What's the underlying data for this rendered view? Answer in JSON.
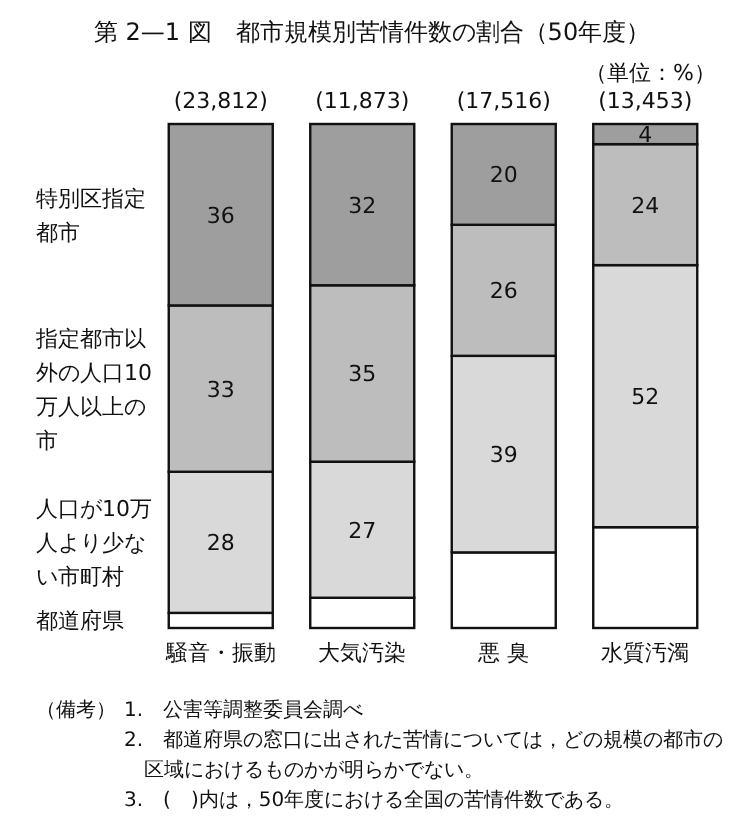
{
  "chart_data": {
    "type": "bar",
    "stacked": true,
    "title": "第 2—1 図　都市規模別苦情件数の割合（50年度）",
    "categories": [
      "騒音・振動",
      "大気汚染",
      "悪 臭",
      "水質汚濁"
    ],
    "series": [
      {
        "name": "都道府県",
        "color": "#ffffff",
        "values": [
          3,
          6,
          15,
          20
        ],
        "value_labels": [
          null,
          null,
          null,
          null
        ]
      },
      {
        "name": "人口が10万人より少ない市町村",
        "color": "#d9d9d9",
        "values": [
          28,
          27,
          39,
          52
        ],
        "value_labels": [
          "28",
          "27",
          "39",
          "52"
        ]
      },
      {
        "name": "指定都市以外の人口10万人以上の市",
        "color": "#bdbdbd",
        "values": [
          33,
          35,
          26,
          24
        ],
        "value_labels": [
          "33",
          "35",
          "26",
          "24"
        ]
      },
      {
        "name": "特別区指定都市",
        "color": "#9e9e9e",
        "values": [
          36,
          32,
          20,
          4
        ],
        "value_labels": [
          "36",
          "32",
          "20",
          "4"
        ]
      }
    ],
    "annotations": [
      "（単位：%）",
      "(23,812)",
      "(11,873)",
      "(17,516)",
      "(13,453)",
      "（備考）",
      "1.　公害等調整委員会調べ",
      "2.　都道府県の窓口に出された苦情については，どの規模の都市の区域におけるものかが明らかでない。",
      "3.　(　)内は，50年度における全国の苦情件数である。"
    ]
  }
}
